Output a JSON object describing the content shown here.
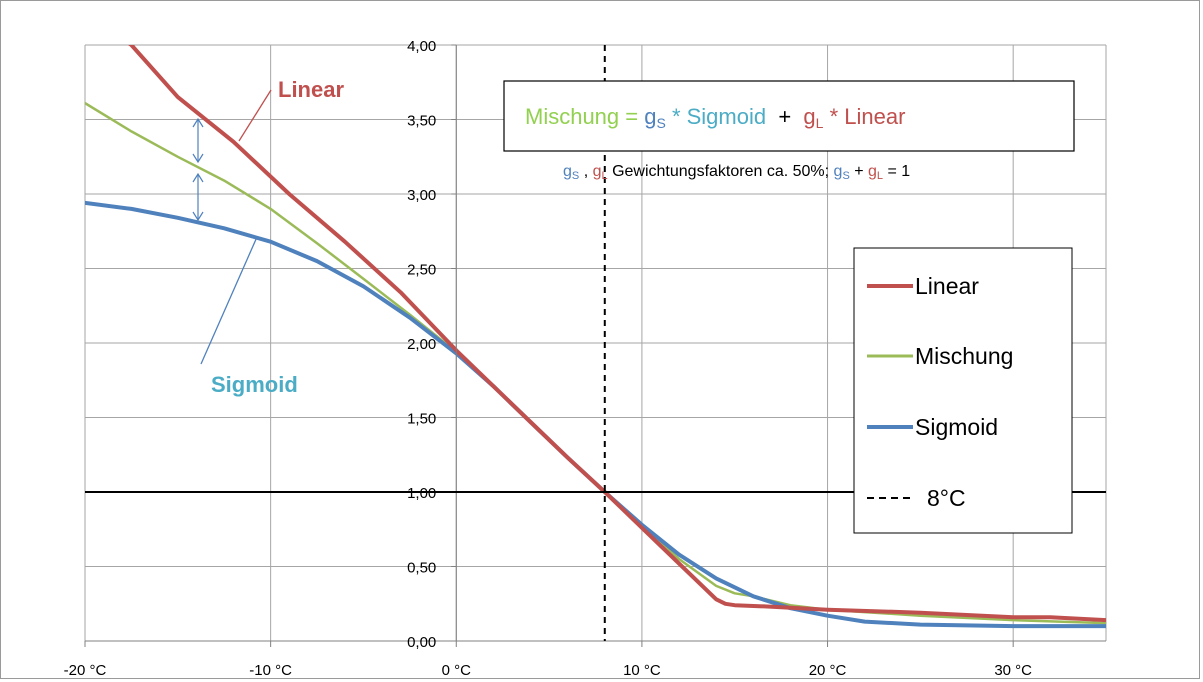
{
  "chart_data": {
    "type": "line",
    "title": "",
    "xlabel": "",
    "ylabel": "",
    "xlim": [
      -20,
      35
    ],
    "ylim": [
      0,
      4
    ],
    "grid": true,
    "legend_position": "right",
    "x_tick_values": [
      -20,
      -10,
      0,
      10,
      20,
      30
    ],
    "x_tick_labels": [
      "-20 °C",
      "-10 °C",
      "0 °C",
      "10 °C",
      "20 °C",
      "30 °C"
    ],
    "y_tick_values": [
      0,
      0.5,
      1,
      1.5,
      2,
      2.5,
      3,
      3.5,
      4
    ],
    "y_tick_labels": [
      "0,00",
      "0,50",
      "1,00",
      "1,50",
      "2,00",
      "2,50",
      "3,00",
      "3,50",
      "4,00"
    ],
    "reference_line_y": 1,
    "reference_line_x": 8,
    "series": [
      {
        "name": "Linear",
        "color": "#c0504d",
        "x": [
          -20,
          -17.5,
          -15,
          -12,
          -9,
          -6,
          -3,
          0,
          2,
          4,
          6,
          8,
          10,
          12,
          14,
          14.5,
          15,
          17,
          20,
          25,
          30,
          32,
          35
        ],
        "y": [
          4.2,
          4.0,
          3.65,
          3.35,
          3.0,
          2.68,
          2.34,
          1.95,
          1.71,
          1.47,
          1.23,
          1.0,
          0.76,
          0.52,
          0.28,
          0.25,
          0.24,
          0.23,
          0.21,
          0.19,
          0.16,
          0.16,
          0.14
        ]
      },
      {
        "name": "Mischung",
        "color": "#9bbb59",
        "x": [
          -20,
          -17.5,
          -15,
          -12.5,
          -10,
          -7.5,
          -5,
          -2.5,
          0,
          2,
          4,
          6,
          8,
          10,
          12,
          14,
          15,
          16,
          18,
          20,
          25,
          30,
          35
        ],
        "y": [
          3.61,
          3.42,
          3.25,
          3.09,
          2.9,
          2.67,
          2.43,
          2.19,
          1.94,
          1.71,
          1.47,
          1.23,
          1.0,
          0.77,
          0.55,
          0.37,
          0.32,
          0.3,
          0.24,
          0.21,
          0.17,
          0.14,
          0.12
        ]
      },
      {
        "name": "Sigmoid",
        "color": "#4f81bd",
        "x": [
          -20,
          -17.5,
          -15,
          -12.5,
          -10,
          -7.5,
          -5,
          -2.5,
          0,
          2,
          4,
          6,
          8,
          10,
          12,
          14,
          16,
          18,
          20,
          22,
          25,
          30,
          35
        ],
        "y": [
          2.94,
          2.9,
          2.84,
          2.77,
          2.68,
          2.55,
          2.38,
          2.17,
          1.93,
          1.71,
          1.47,
          1.23,
          1.0,
          0.78,
          0.58,
          0.42,
          0.3,
          0.22,
          0.17,
          0.13,
          0.11,
          0.1,
          0.1
        ]
      }
    ],
    "legend": [
      {
        "label": "Linear",
        "color": "#c0504d",
        "style": "solid"
      },
      {
        "label": "Mischung",
        "color": "#9bbb59",
        "style": "solid"
      },
      {
        "label": "Sigmoid",
        "color": "#4f81bd",
        "style": "solid"
      },
      {
        "label": "8°C",
        "color": "#000000",
        "style": "dashed"
      }
    ],
    "annotations": {
      "linear_label": {
        "text": "Linear",
        "color": "#c0504d"
      },
      "sigmoid_label": {
        "text": "Sigmoid",
        "color": "#4bacc6"
      },
      "formula": {
        "mischung": "Mischung",
        "equals": " = ",
        "gs_g": "g",
        "gs_sub": "S",
        "star1": " * ",
        "sigmoid": "Sigmoid",
        "plus": "  +  ",
        "gl_g": "g",
        "gl_sub": "L",
        "star2": " * ",
        "linear": "Linear",
        "colors": {
          "mischung": "#92d050",
          "g_s": "#4f81bd",
          "sigmoid": "#4bacc6",
          "g_l": "#c0504d",
          "black": "#000000"
        }
      },
      "note": {
        "gs_g": "g",
        "gs_sub": "S",
        "comma": " , ",
        "gl_g": "g",
        "gl_sub": "L",
        "text1": " Gewichtungsfaktoren ca. 50%; ",
        "gs2_g": "g",
        "gs2_sub": "S",
        "plus": " + ",
        "gl2_g": "g",
        "gl2_sub": "L",
        "end": " = 1"
      }
    }
  }
}
